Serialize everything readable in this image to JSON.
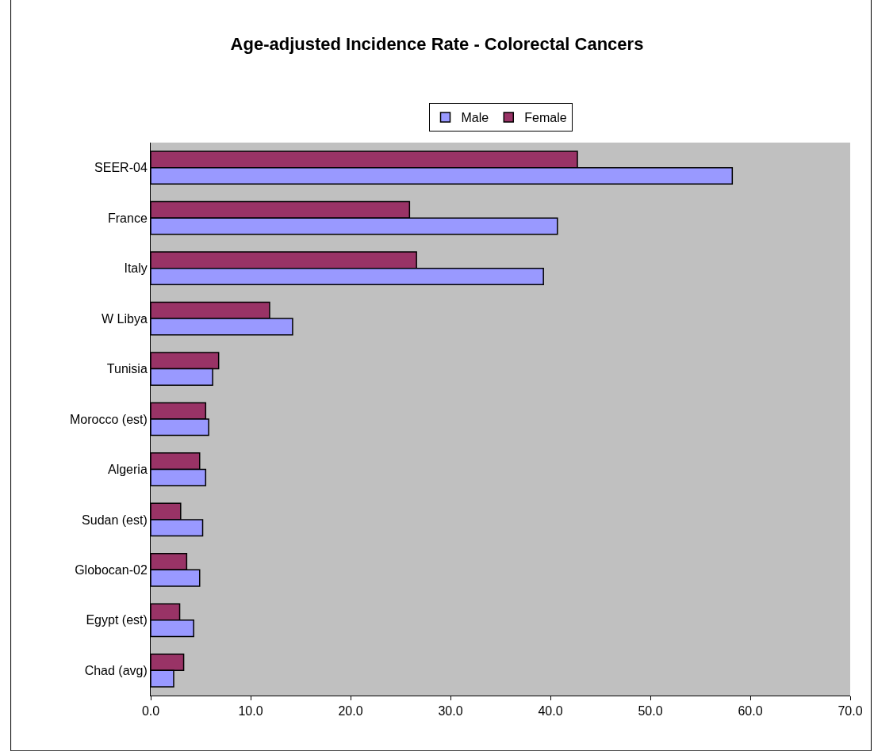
{
  "chart_data": {
    "type": "bar",
    "orientation": "horizontal",
    "title": "Age-adjusted Incidence Rate - Colorectal Cancers",
    "categories": [
      "SEER-04",
      "France",
      "Italy",
      "W Libya",
      "Tunisia",
      "Morocco (est)",
      "Algeria",
      "Sudan (est)",
      "Globocan-02",
      "Egypt (est)",
      "Chad (avg)"
    ],
    "series": [
      {
        "name": "Male",
        "color": "#9999ff",
        "values": [
          58.2,
          40.7,
          39.3,
          14.2,
          6.2,
          5.8,
          5.5,
          5.2,
          4.9,
          4.3,
          2.3
        ]
      },
      {
        "name": "Female",
        "color": "#993366",
        "values": [
          42.7,
          25.9,
          26.6,
          11.9,
          6.8,
          5.5,
          4.9,
          3.0,
          3.6,
          2.9,
          3.3
        ]
      }
    ],
    "xlim": [
      0,
      70
    ],
    "xticks": [
      {
        "value": 0,
        "label": "0.0"
      },
      {
        "value": 10,
        "label": "10.0"
      },
      {
        "value": 20,
        "label": "20.0"
      },
      {
        "value": 30,
        "label": "30.0"
      },
      {
        "value": 40,
        "label": "40.0"
      },
      {
        "value": 50,
        "label": "50.0"
      },
      {
        "value": 60,
        "label": "60.0"
      },
      {
        "value": 70,
        "label": "70.0"
      }
    ],
    "grid": false,
    "legend": "top"
  }
}
